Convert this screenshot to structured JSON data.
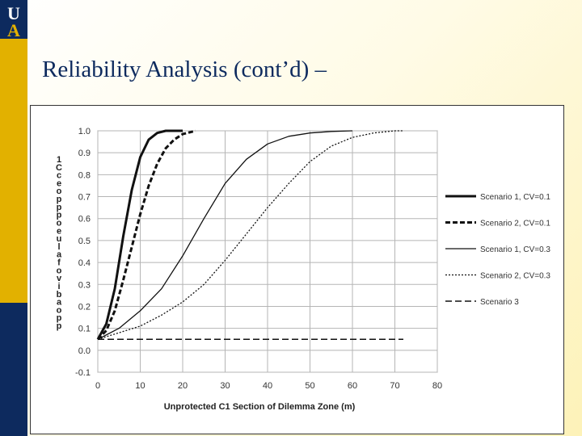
{
  "slide": {
    "title": "Reliability Analysis (cont’d) –",
    "logo_letters": [
      "U",
      "A"
    ]
  },
  "colors": {
    "navy": "#0d2a5e",
    "gold": "#e2b100"
  },
  "chart_data": {
    "type": "line",
    "xlabel": "Unprotected C1 Section of Dilemma Zone (m)",
    "ylabel_chars": [
      "1",
      "C",
      "c",
      "e",
      "o",
      "p",
      "p",
      "p",
      "o",
      "e",
      "u",
      "l",
      "a",
      "f",
      "o",
      "v",
      "i",
      "b",
      "a",
      "o",
      "p",
      "p"
    ],
    "xlim": [
      0,
      80
    ],
    "ylim": [
      -0.1,
      1.0
    ],
    "xticks": [
      "0",
      "10",
      "20",
      "30",
      "40",
      "50",
      "60",
      "70",
      "80"
    ],
    "yticks": [
      "1.0",
      "0.9",
      "0.8",
      "0.7",
      "0.6",
      "0.5",
      "0.4",
      "0.3",
      "0.2",
      "0.1",
      "0.0",
      "-0.1"
    ],
    "grid": true,
    "legend_position": "right",
    "series": [
      {
        "name": "Scenario 1, CV=0.1",
        "style": "thick-solid",
        "x": [
          0,
          2,
          4,
          6,
          8,
          10,
          12,
          14,
          16,
          18,
          20
        ],
        "y": [
          0.05,
          0.12,
          0.28,
          0.52,
          0.73,
          0.88,
          0.96,
          0.99,
          1.0,
          1.0,
          1.0
        ]
      },
      {
        "name": "Scenario 2, CV=0.1",
        "style": "thick-dashed",
        "x": [
          0,
          2,
          4,
          6,
          8,
          10,
          12,
          14,
          16,
          18,
          20,
          22,
          23
        ],
        "y": [
          0.05,
          0.09,
          0.18,
          0.32,
          0.47,
          0.62,
          0.75,
          0.85,
          0.92,
          0.96,
          0.985,
          0.995,
          1.0
        ]
      },
      {
        "name": "Scenario 1, CV=0.3",
        "style": "thin-solid",
        "x": [
          0,
          5,
          10,
          15,
          20,
          25,
          30,
          35,
          40,
          45,
          50,
          55,
          60
        ],
        "y": [
          0.05,
          0.1,
          0.18,
          0.28,
          0.43,
          0.6,
          0.76,
          0.87,
          0.94,
          0.975,
          0.99,
          0.997,
          1.0
        ]
      },
      {
        "name": "Scenario 2, CV=0.3",
        "style": "thin-dotted",
        "x": [
          0,
          5,
          10,
          15,
          20,
          25,
          30,
          35,
          40,
          45,
          50,
          55,
          60,
          65,
          70,
          72
        ],
        "y": [
          0.05,
          0.08,
          0.11,
          0.16,
          0.22,
          0.3,
          0.41,
          0.53,
          0.65,
          0.76,
          0.86,
          0.93,
          0.97,
          0.99,
          1.0,
          1.0
        ]
      },
      {
        "name": "Scenario 3",
        "style": "long-dashed",
        "x": [
          0,
          72
        ],
        "y": [
          0.05,
          0.05
        ]
      }
    ]
  }
}
